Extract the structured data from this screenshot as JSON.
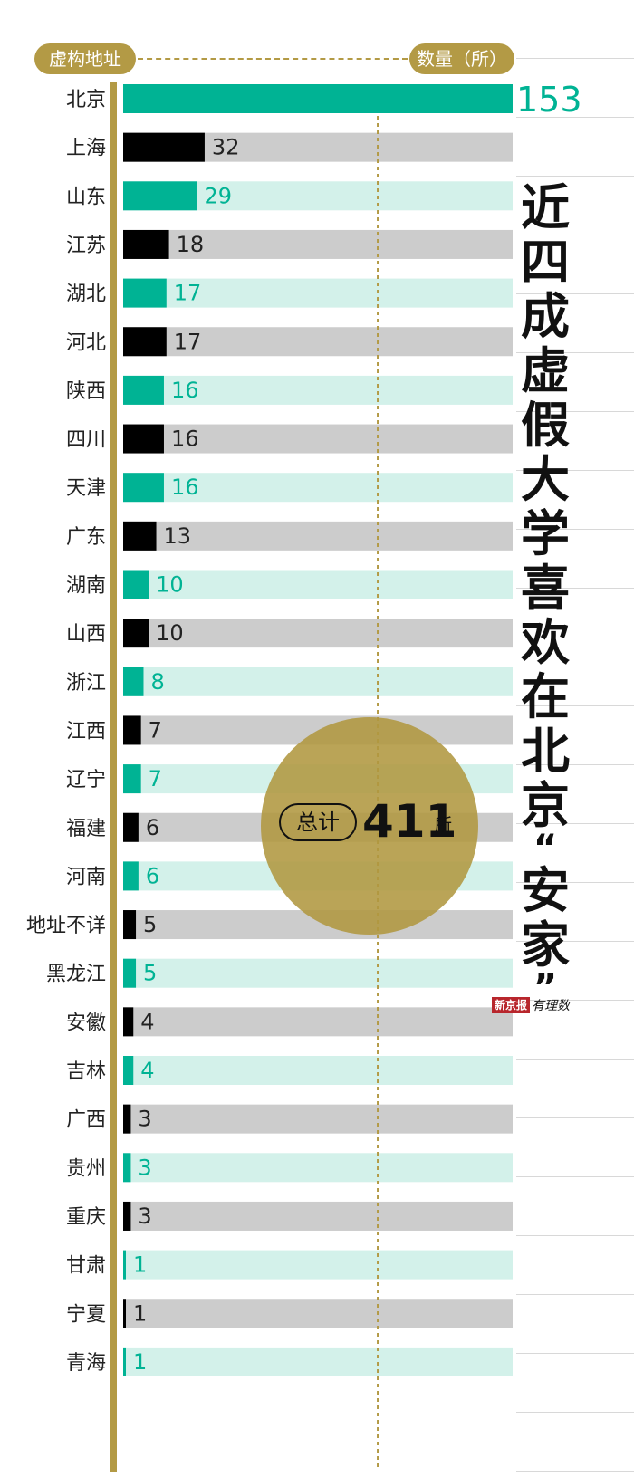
{
  "header": {
    "left_label": "虚构地址",
    "right_label": "数量（所）"
  },
  "title": {
    "line1": [
      "近",
      "四",
      "成",
      "虚",
      "假",
      "大",
      "学",
      "喜",
      "欢",
      "在",
      "北",
      "京"
    ],
    "line2": [
      "安",
      "家"
    ],
    "quote_open": "“",
    "quote_close": "”"
  },
  "total": {
    "label": "总计",
    "value": "411",
    "unit": "所"
  },
  "brand": {
    "name": "新京报",
    "sub": "有理数"
  },
  "colors": {
    "teal": "#00b394",
    "black": "#000000",
    "teal_track": "#d3f1ea",
    "grey_track": "#cccccc",
    "gold": "#b39a45"
  },
  "chart_data": {
    "type": "bar",
    "orientation": "horizontal",
    "categories": [
      "北京",
      "上海",
      "山东",
      "江苏",
      "湖北",
      "河北",
      "陕西",
      "四川",
      "天津",
      "广东",
      "湖南",
      "山西",
      "浙江",
      "江西",
      "辽宁",
      "福建",
      "河南",
      "地址不详",
      "黑龙江",
      "安徽",
      "吉林",
      "广西",
      "贵州",
      "重庆",
      "甘肃",
      "宁夏",
      "青海"
    ],
    "values": [
      153,
      32,
      29,
      18,
      17,
      17,
      16,
      16,
      16,
      13,
      10,
      10,
      8,
      7,
      7,
      6,
      6,
      5,
      5,
      4,
      4,
      3,
      3,
      3,
      1,
      1,
      1
    ],
    "labels": [
      "153",
      "32",
      "29",
      "18",
      "17",
      "17",
      "16",
      "16",
      "16",
      "13",
      "10",
      "10",
      "8",
      "7",
      "7",
      "6",
      "6",
      "5",
      "5",
      "4",
      "4",
      "3",
      "3",
      "3",
      "1",
      "1",
      "1"
    ],
    "xlim": [
      0,
      153
    ],
    "reference_line": 100,
    "bar_color_pattern": [
      "teal",
      "black"
    ]
  }
}
